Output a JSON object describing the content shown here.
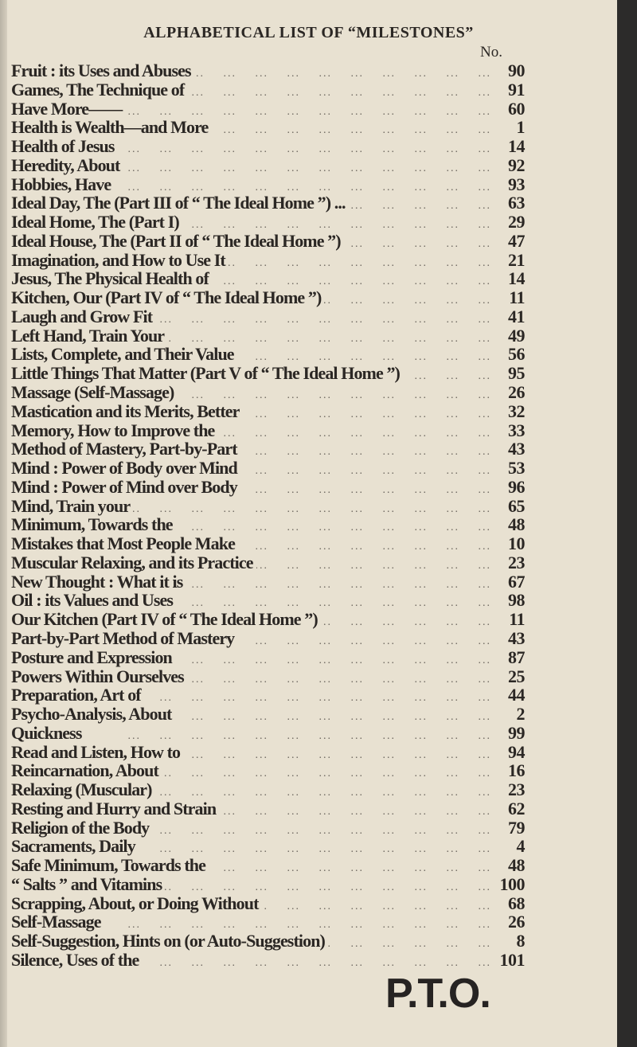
{
  "title": "ALPHABETICAL LIST OF “MILESTONES”",
  "column_header": "No.",
  "entries": [
    {
      "label": "Fruit : its Uses and Abuses",
      "no": "90"
    },
    {
      "label": "Games, The Technique of",
      "no": "91"
    },
    {
      "label": "Have More——",
      "no": "60"
    },
    {
      "label": "Health is Wealth—and More",
      "no": "1"
    },
    {
      "label": "Health of Jesus",
      "no": "14"
    },
    {
      "label": "Heredity, About",
      "no": "92"
    },
    {
      "label": "Hobbies, Have",
      "no": "93"
    },
    {
      "label": "Ideal Day, The (Part III of “ The Ideal Home ”) ...",
      "no": "63"
    },
    {
      "label": "Ideal Home, The (Part I)",
      "no": "29"
    },
    {
      "label": "Ideal House, The (Part II of “ The Ideal Home ”)",
      "no": "47"
    },
    {
      "label": "Imagination, and How to Use It",
      "no": "21"
    },
    {
      "label": "Jesus, The Physical Health of",
      "no": "14"
    },
    {
      "label": "Kitchen, Our (Part IV of “ The Ideal Home ”)",
      "no": "11"
    },
    {
      "label": "Laugh and Grow Fit",
      "no": "41"
    },
    {
      "label": "Left Hand, Train Your",
      "no": "49"
    },
    {
      "label": "Lists, Complete, and Their Value",
      "no": "56"
    },
    {
      "label": "Little Things That Matter (Part V of “ The Ideal Home ”)",
      "no": "95"
    },
    {
      "label": "Massage (Self-Massage)",
      "no": "26"
    },
    {
      "label": "Mastication and its Merits, Better",
      "no": "32"
    },
    {
      "label": "Memory, How to Improve the",
      "no": "33"
    },
    {
      "label": "Method of Mastery, Part-by-Part",
      "no": "43"
    },
    {
      "label": "Mind : Power of Body over Mind",
      "no": "53"
    },
    {
      "label": "Mind : Power of Mind over Body",
      "no": "96"
    },
    {
      "label": "Mind, Train your",
      "no": "65"
    },
    {
      "label": "Minimum, Towards the",
      "no": "48"
    },
    {
      "label": "Mistakes that Most People Make",
      "no": "10"
    },
    {
      "label": "Muscular Relaxing, and its Practice",
      "no": "23"
    },
    {
      "label": "New Thought : What it is",
      "no": "67"
    },
    {
      "label": "Oil : its Values and Uses",
      "no": "98"
    },
    {
      "label": "Our Kitchen (Part IV of “ The Ideal Home ”)",
      "no": "11"
    },
    {
      "label": "Part-by-Part Method of Mastery",
      "no": "43"
    },
    {
      "label": "Posture and Expression",
      "no": "87"
    },
    {
      "label": "Powers Within Ourselves",
      "no": "25"
    },
    {
      "label": "Preparation, Art of",
      "no": "44"
    },
    {
      "label": "Psycho-Analysis, About",
      "no": "2"
    },
    {
      "label": "Quickness",
      "no": "99"
    },
    {
      "label": "Read and Listen, How to",
      "no": "94"
    },
    {
      "label": "Reincarnation, About",
      "no": "16"
    },
    {
      "label": "Relaxing (Muscular)",
      "no": "23"
    },
    {
      "label": "Resting and Hurry and Strain",
      "no": "62"
    },
    {
      "label": "Religion of the Body",
      "no": "79"
    },
    {
      "label": "Sacraments, Daily",
      "no": "4"
    },
    {
      "label": "Safe Minimum, Towards the",
      "no": "48"
    },
    {
      "label": "“ Salts ” and Vitamins",
      "no": "100"
    },
    {
      "label": "Scrapping, About, or Doing Without",
      "no": "68"
    },
    {
      "label": "Self-Massage",
      "no": "26"
    },
    {
      "label": "Self-Suggestion, Hints on (or Auto-Suggestion)",
      "no": "8"
    },
    {
      "label": "Silence, Uses of the",
      "no": "101"
    }
  ],
  "footer": "P.T.O."
}
